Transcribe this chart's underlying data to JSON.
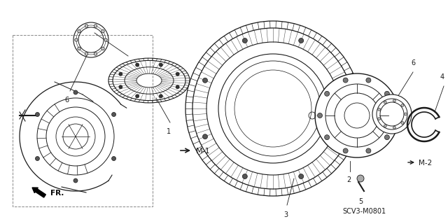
{
  "bg_color": "#ffffff",
  "line_color": "#1a1a1a",
  "dashed_color": "#888888",
  "label_M1": "M-1",
  "label_M2": "M-2",
  "label_FR": "FR.",
  "part_code": "SCV3-M0801"
}
